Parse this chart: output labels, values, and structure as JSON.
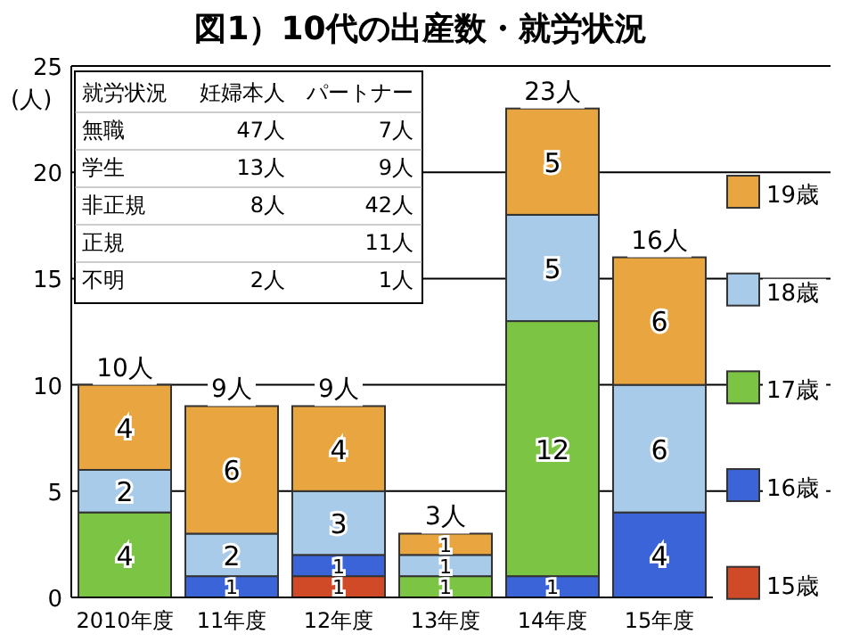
{
  "chart_data": {
    "type": "bar",
    "title": "図1）10代の出産数・就労状況",
    "ylabel": "(人)",
    "categories": [
      "2010年度",
      "11年度",
      "12年度",
      "13年度",
      "14年度",
      "15年度"
    ],
    "stacked": true,
    "data_labels": true,
    "ylim": [
      0,
      25
    ],
    "yticks": [
      0,
      5,
      10,
      15,
      20,
      25
    ],
    "grid": "y",
    "legend": "right",
    "series": [
      {
        "name": "15歳",
        "color": "#d04a28",
        "values": [
          null,
          null,
          1,
          null,
          null,
          null
        ]
      },
      {
        "name": "16歳",
        "color": "#3a64d8",
        "values": [
          null,
          1,
          1,
          null,
          1,
          4
        ]
      },
      {
        "name": "17歳",
        "color": "#7cc444",
        "values": [
          4,
          null,
          null,
          1,
          12,
          null
        ]
      },
      {
        "name": "18歳",
        "color": "#a9cbea",
        "values": [
          2,
          2,
          3,
          1,
          5,
          6
        ]
      },
      {
        "name": "19歳",
        "color": "#e9a640",
        "values": [
          4,
          6,
          4,
          1,
          5,
          6
        ]
      }
    ],
    "totals": [
      "10人",
      "9人",
      "9人",
      "3人",
      "23人",
      "16人"
    ],
    "annotations": [
      "就労状況",
      "妊婦本人",
      "パートナー",
      "無職",
      "47人",
      "7人",
      "学生",
      "13人",
      "9人",
      "非正規",
      "8人",
      "42人",
      "正規",
      null,
      "11人",
      "不明",
      "2人",
      "1人"
    ]
  }
}
